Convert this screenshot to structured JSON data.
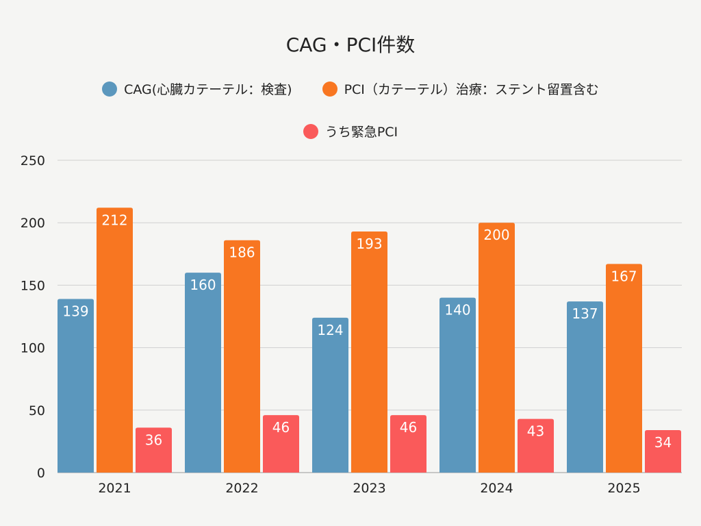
{
  "chart_data": {
    "type": "bar",
    "title": "CAG・PCI件数",
    "categories": [
      "2021",
      "2022",
      "2023",
      "2024",
      "2025"
    ],
    "series": [
      {
        "name": "CAG(心臓カテーテル：検査)",
        "color": "#5b97bd",
        "values": [
          139,
          160,
          124,
          140,
          137
        ]
      },
      {
        "name": "PCI（カテーテル）治療：ステント留置含む",
        "color": "#f87621",
        "values": [
          212,
          186,
          193,
          200,
          167
        ]
      },
      {
        "name": "うち緊急PCI",
        "color": "#fa5a5a",
        "values": [
          36,
          46,
          46,
          43,
          34
        ]
      }
    ],
    "xlabel": "",
    "ylabel": "",
    "ylim": [
      0,
      250
    ],
    "yticks": [
      0,
      50,
      100,
      150,
      200,
      250
    ],
    "grid": true,
    "legend": "top-center",
    "data_labels": true
  }
}
